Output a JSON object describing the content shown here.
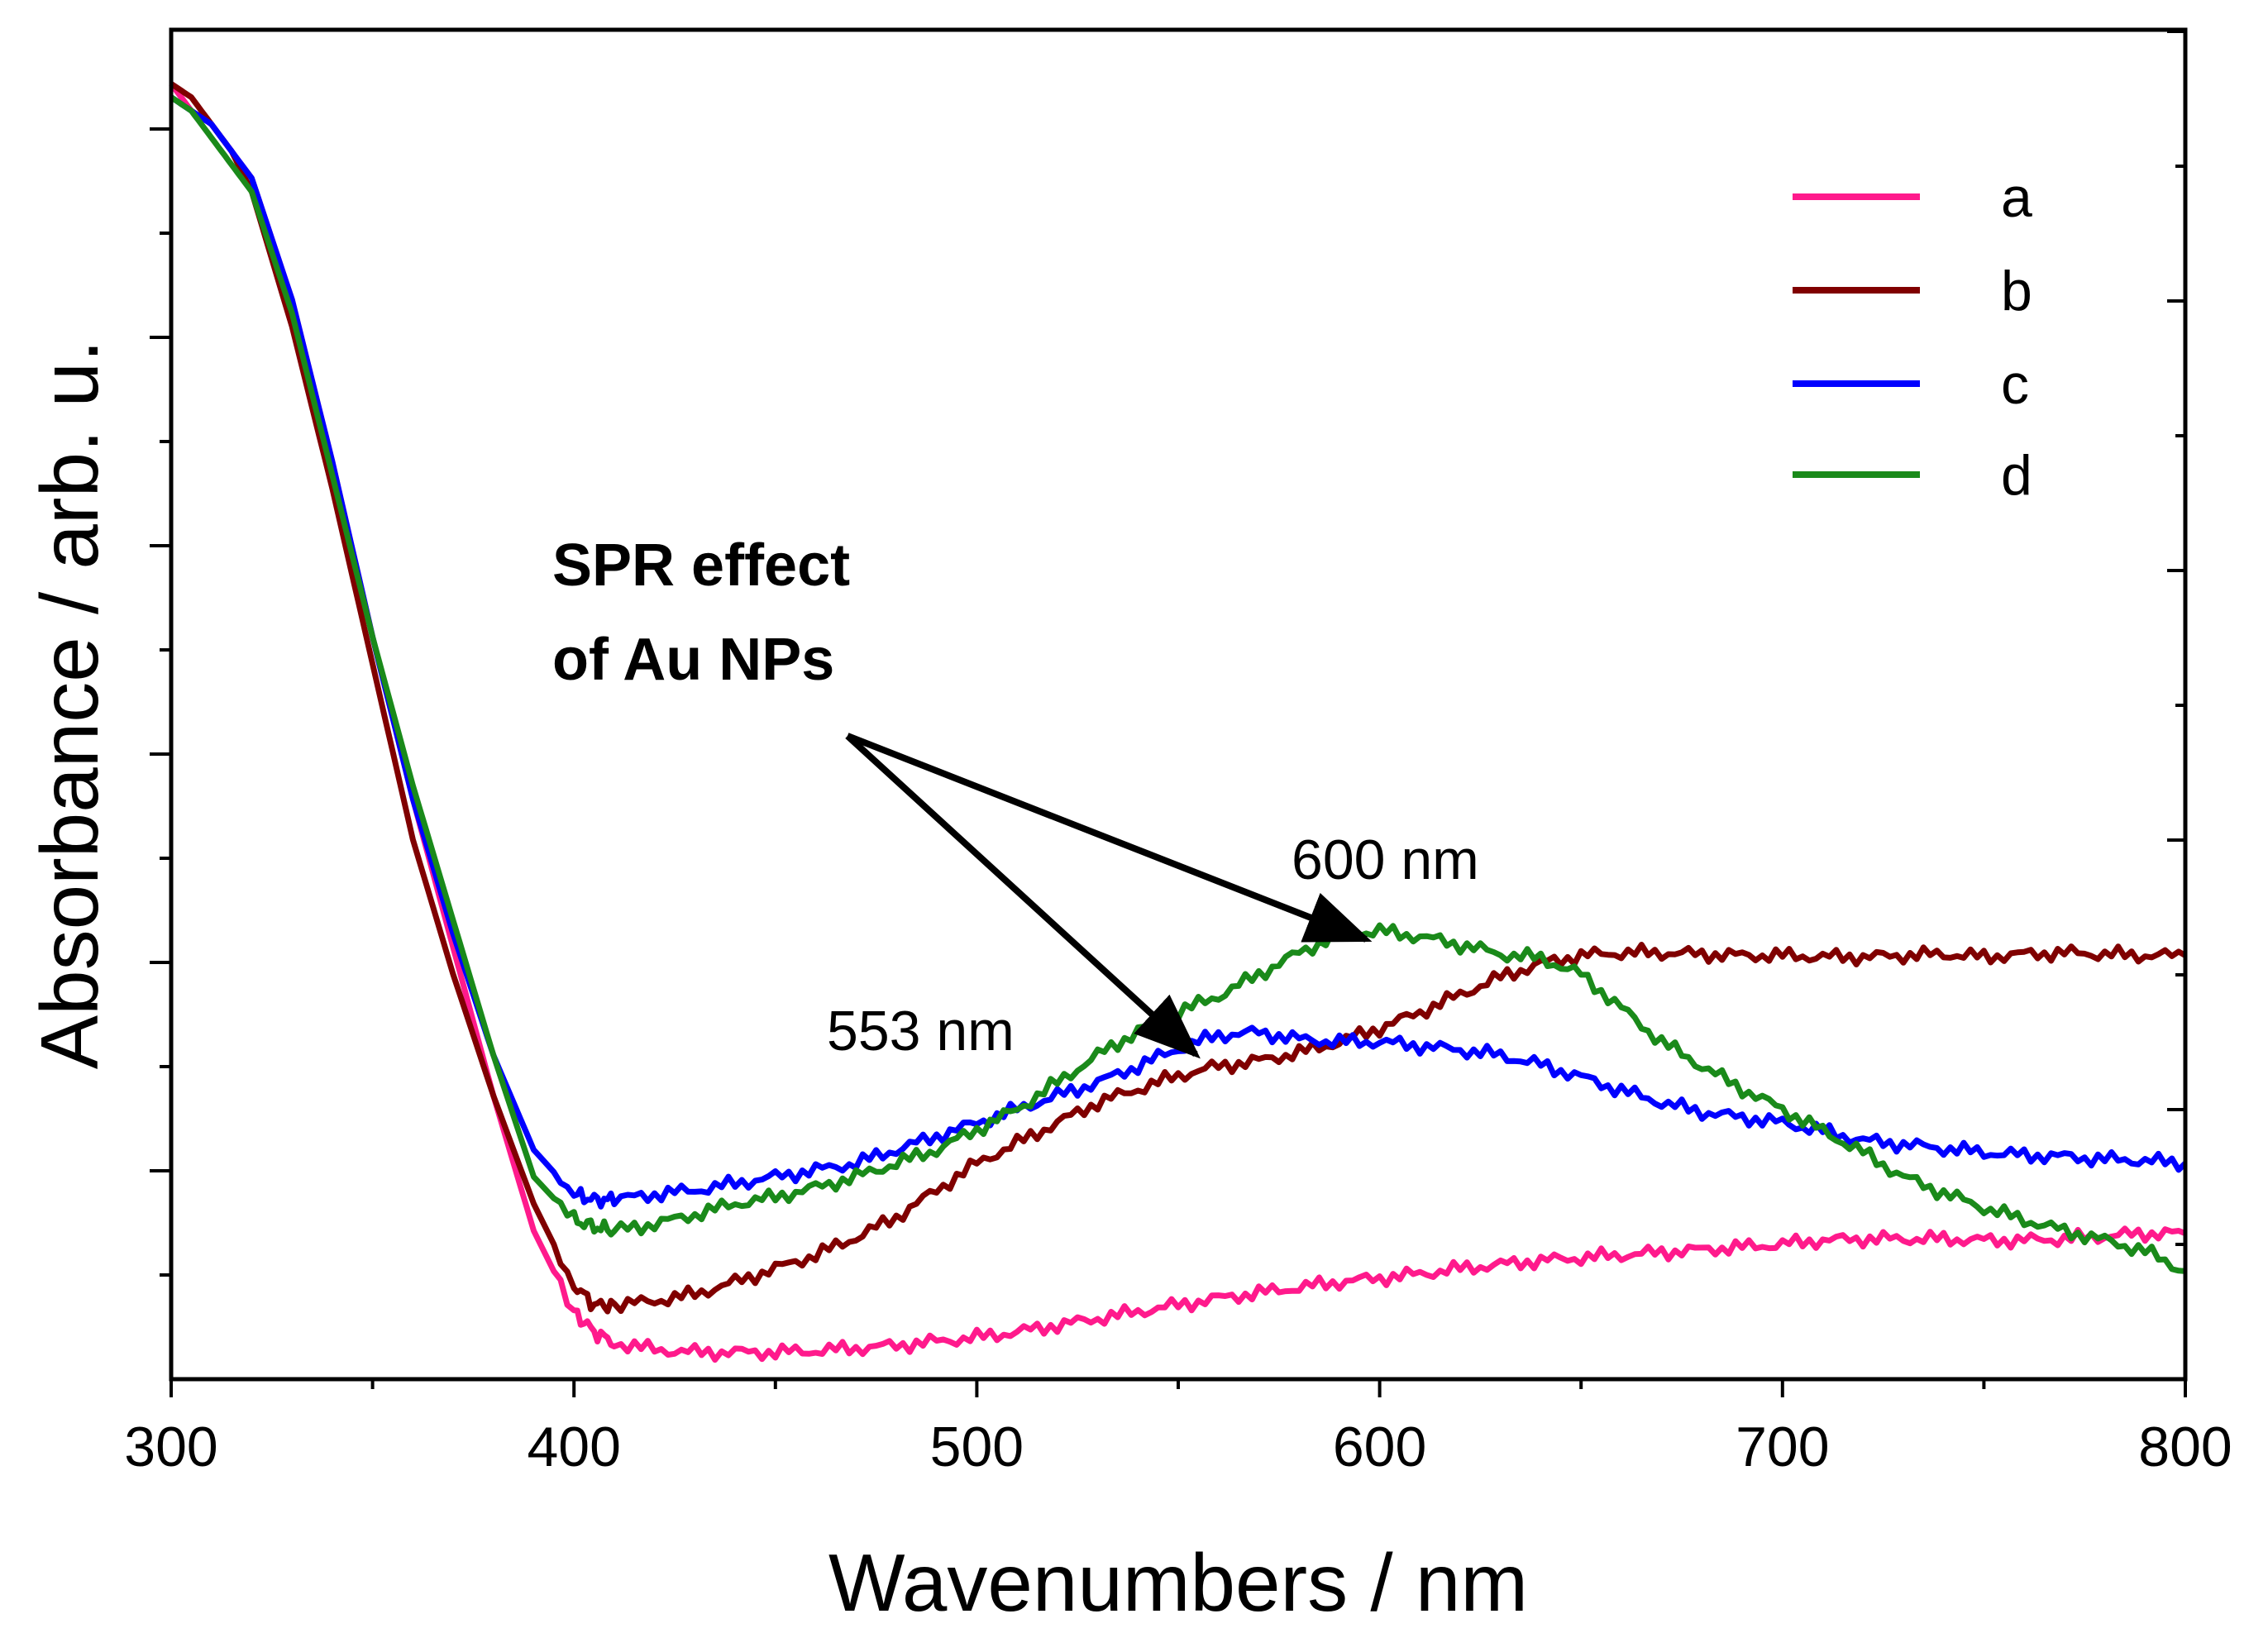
{
  "chart_data": {
    "type": "line",
    "title": "",
    "xlabel": "Wavenumbers / nm",
    "ylabel": "Absorbance / arb. u.",
    "xlim": [
      300,
      800
    ],
    "ylim": [
      0,
      1.0
    ],
    "x_ticks": [
      "300",
      "400",
      "500",
      "600",
      "700",
      "800"
    ],
    "y_ticks_labeled": false,
    "legend_position": "top-right",
    "series": [
      {
        "name": "a",
        "color": "#ff1a8c",
        "x": [
          300,
          305,
          310,
          315,
          320,
          330,
          340,
          350,
          360,
          370,
          380,
          390,
          400,
          405,
          410,
          420,
          430,
          440,
          450,
          460,
          470,
          480,
          490,
          500,
          510,
          520,
          530,
          540,
          550,
          560,
          570,
          580,
          590,
          600,
          610,
          620,
          630,
          640,
          650,
          660,
          670,
          680,
          690,
          700,
          710,
          720,
          730,
          740,
          750,
          760,
          770,
          780,
          790,
          800
        ],
        "y": [
          0.96,
          0.94,
          0.93,
          0.91,
          0.89,
          0.8,
          0.68,
          0.55,
          0.43,
          0.32,
          0.21,
          0.11,
          0.05,
          0.035,
          0.027,
          0.022,
          0.02,
          0.02,
          0.02,
          0.021,
          0.023,
          0.025,
          0.028,
          0.031,
          0.035,
          0.04,
          0.045,
          0.05,
          0.055,
          0.06,
          0.064,
          0.068,
          0.072,
          0.075,
          0.078,
          0.082,
          0.085,
          0.088,
          0.09,
          0.092,
          0.094,
          0.096,
          0.098,
          0.1,
          0.103,
          0.104,
          0.104,
          0.104,
          0.103,
          0.103,
          0.104,
          0.106,
          0.108,
          0.108
        ]
      },
      {
        "name": "b",
        "color": "#800000",
        "x": [
          300,
          305,
          310,
          315,
          320,
          330,
          340,
          350,
          360,
          370,
          380,
          390,
          400,
          405,
          410,
          420,
          430,
          440,
          450,
          460,
          470,
          480,
          490,
          500,
          510,
          520,
          530,
          540,
          550,
          560,
          570,
          580,
          590,
          600,
          610,
          620,
          630,
          640,
          650,
          660,
          670,
          680,
          690,
          700,
          710,
          720,
          730,
          740,
          750,
          760,
          770,
          780,
          790,
          800
        ],
        "y": [
          0.96,
          0.95,
          0.93,
          0.91,
          0.88,
          0.78,
          0.66,
          0.53,
          0.4,
          0.3,
          0.21,
          0.13,
          0.07,
          0.055,
          0.055,
          0.058,
          0.063,
          0.072,
          0.082,
          0.092,
          0.105,
          0.12,
          0.14,
          0.16,
          0.175,
          0.19,
          0.205,
          0.215,
          0.225,
          0.232,
          0.236,
          0.242,
          0.25,
          0.26,
          0.272,
          0.285,
          0.298,
          0.308,
          0.314,
          0.316,
          0.316,
          0.315,
          0.314,
          0.314,
          0.313,
          0.313,
          0.314,
          0.315,
          0.313,
          0.315,
          0.316,
          0.315,
          0.314,
          0.314
        ]
      },
      {
        "name": "c",
        "color": "#0000ff",
        "x": [
          300,
          305,
          310,
          315,
          320,
          330,
          340,
          350,
          360,
          370,
          380,
          390,
          400,
          405,
          410,
          420,
          430,
          440,
          450,
          460,
          470,
          480,
          490,
          500,
          510,
          520,
          530,
          540,
          550,
          560,
          570,
          580,
          590,
          600,
          610,
          620,
          630,
          640,
          650,
          660,
          670,
          680,
          690,
          700,
          710,
          720,
          730,
          740,
          750,
          760,
          770,
          780,
          790,
          800
        ],
        "y": [
          0.95,
          0.94,
          0.93,
          0.91,
          0.89,
          0.8,
          0.68,
          0.55,
          0.43,
          0.33,
          0.24,
          0.17,
          0.137,
          0.133,
          0.133,
          0.137,
          0.14,
          0.145,
          0.15,
          0.155,
          0.16,
          0.17,
          0.18,
          0.19,
          0.2,
          0.21,
          0.22,
          0.232,
          0.245,
          0.255,
          0.257,
          0.252,
          0.25,
          0.25,
          0.247,
          0.244,
          0.24,
          0.233,
          0.224,
          0.214,
          0.205,
          0.198,
          0.194,
          0.19,
          0.184,
          0.177,
          0.174,
          0.171,
          0.168,
          0.166,
          0.165,
          0.163,
          0.162,
          0.16
        ]
      },
      {
        "name": "d",
        "color": "#1a8a1a",
        "x": [
          300,
          305,
          310,
          315,
          320,
          330,
          340,
          350,
          360,
          370,
          380,
          390,
          400,
          405,
          410,
          420,
          430,
          440,
          450,
          460,
          470,
          480,
          490,
          500,
          510,
          520,
          530,
          540,
          550,
          560,
          570,
          580,
          590,
          600,
          610,
          620,
          630,
          640,
          650,
          660,
          670,
          680,
          690,
          700,
          710,
          720,
          730,
          740,
          750,
          760,
          770,
          780,
          790,
          800
        ],
        "y": [
          0.95,
          0.94,
          0.92,
          0.9,
          0.88,
          0.79,
          0.67,
          0.55,
          0.44,
          0.34,
          0.24,
          0.15,
          0.118,
          0.113,
          0.11,
          0.115,
          0.122,
          0.13,
          0.135,
          0.142,
          0.15,
          0.16,
          0.17,
          0.185,
          0.2,
          0.22,
          0.24,
          0.258,
          0.272,
          0.284,
          0.3,
          0.316,
          0.33,
          0.332,
          0.328,
          0.322,
          0.315,
          0.312,
          0.3,
          0.275,
          0.25,
          0.232,
          0.215,
          0.2,
          0.184,
          0.168,
          0.15,
          0.138,
          0.127,
          0.118,
          0.11,
          0.103,
          0.095,
          0.08
        ]
      }
    ],
    "annotations": {
      "spr_line1": "SPR effect",
      "spr_line2": "of Au NPs",
      "peak1": "553 nm",
      "peak2": "600 nm"
    }
  }
}
